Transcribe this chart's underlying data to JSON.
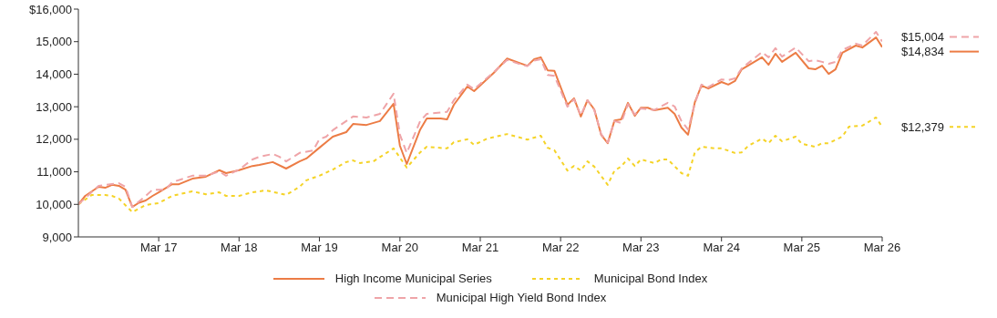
{
  "chart_data": {
    "type": "line",
    "xlim": [
      "2016-03",
      "2026-03"
    ],
    "ylim": [
      9000,
      16000
    ],
    "xticks": [
      {
        "value": "2017-03",
        "label": "Mar 17"
      },
      {
        "value": "2018-03",
        "label": "Mar 18"
      },
      {
        "value": "2019-03",
        "label": "Mar 19"
      },
      {
        "value": "2020-03",
        "label": "Mar 20"
      },
      {
        "value": "2021-03",
        "label": "Mar 21"
      },
      {
        "value": "2022-03",
        "label": "Mar 22"
      },
      {
        "value": "2023-03",
        "label": "Mar 23"
      },
      {
        "value": "2024-03",
        "label": "Mar 24"
      },
      {
        "value": "2025-03",
        "label": "Mar 25"
      },
      {
        "value": "2026-03",
        "label": "Mar 26"
      }
    ],
    "yticks": [
      {
        "value": 9000,
        "label": "9,000"
      },
      {
        "value": 10000,
        "label": "10,000"
      },
      {
        "value": 11000,
        "label": "11,000"
      },
      {
        "value": 12000,
        "label": "12,000"
      },
      {
        "value": 13000,
        "label": "13,000"
      },
      {
        "value": 14000,
        "label": "14,000"
      },
      {
        "value": 15000,
        "label": "15,000"
      },
      {
        "value": 16000,
        "label": "$16,000"
      }
    ],
    "grid": false,
    "legend": "bottom",
    "marker": "none",
    "series": [
      {
        "name": "High Income Municipal Series",
        "color": "#ec7c45",
        "line_style": "solid",
        "x": [
          "2016-03",
          "2016-04",
          "2016-06",
          "2016-07",
          "2016-08",
          "2016-09",
          "2016-10",
          "2016-11",
          "2016-12",
          "2017-01",
          "2017-02",
          "2017-03",
          "2017-05",
          "2017-06",
          "2017-08",
          "2017-10",
          "2017-12",
          "2018-01",
          "2018-03",
          "2018-05",
          "2018-06",
          "2018-08",
          "2018-10",
          "2018-12",
          "2019-01",
          "2019-03",
          "2019-04",
          "2019-05",
          "2019-07",
          "2019-08",
          "2019-10",
          "2019-12",
          "2020-02",
          "2020-03",
          "2020-04",
          "2020-06",
          "2020-07",
          "2020-09",
          "2020-10",
          "2020-11",
          "2021-01",
          "2021-02",
          "2021-05",
          "2021-07",
          "2021-09",
          "2021-10",
          "2021-11",
          "2021-12",
          "2022-01",
          "2022-02",
          "2022-04",
          "2022-05",
          "2022-06",
          "2022-07",
          "2022-08",
          "2022-09",
          "2022-10",
          "2022-11",
          "2022-12",
          "2023-01",
          "2023-02",
          "2023-03",
          "2023-04",
          "2023-05",
          "2023-07",
          "2023-08",
          "2023-09",
          "2023-10",
          "2023-11",
          "2023-12",
          "2024-01",
          "2024-03",
          "2024-04",
          "2024-05",
          "2024-06",
          "2024-09",
          "2024-10",
          "2024-11",
          "2024-12",
          "2025-02",
          "2025-04",
          "2025-05",
          "2025-06",
          "2025-07",
          "2025-08",
          "2025-09",
          "2025-11",
          "2025-12",
          "2026-02",
          "2026-03"
        ],
        "values": [
          10000,
          10260,
          10540,
          10510,
          10600,
          10570,
          10450,
          9920,
          10050,
          10120,
          10260,
          10370,
          10620,
          10620,
          10790,
          10850,
          11050,
          10960,
          11050,
          11180,
          11210,
          11300,
          11100,
          11320,
          11410,
          11740,
          11910,
          12080,
          12220,
          12470,
          12440,
          12560,
          13090,
          11800,
          11240,
          12300,
          12640,
          12640,
          12610,
          13060,
          13620,
          13480,
          14040,
          14480,
          14330,
          14260,
          14460,
          14520,
          14120,
          14100,
          13060,
          13260,
          12700,
          13200,
          12920,
          12140,
          11880,
          12580,
          12610,
          13120,
          12720,
          12970,
          12970,
          12890,
          12970,
          12780,
          12360,
          12140,
          13140,
          13650,
          13560,
          13760,
          13680,
          13790,
          14150,
          14520,
          14290,
          14630,
          14380,
          14660,
          14180,
          14150,
          14260,
          14010,
          14150,
          14660,
          14880,
          14820,
          15130,
          14834
        ]
      },
      {
        "name": "Municipal Bond Index",
        "color": "#f5d327",
        "line_style": "dotted",
        "x": [
          "2016-03",
          "2016-05",
          "2016-07",
          "2016-08",
          "2016-09",
          "2016-11",
          "2017-01",
          "2017-03",
          "2017-05",
          "2017-06",
          "2017-08",
          "2017-10",
          "2017-12",
          "2018-01",
          "2018-03",
          "2018-05",
          "2018-07",
          "2018-10",
          "2018-12",
          "2019-01",
          "2019-03",
          "2019-05",
          "2019-07",
          "2019-08",
          "2019-09",
          "2019-11",
          "2020-02",
          "2020-04",
          "2020-06",
          "2020-07",
          "2020-10",
          "2020-11",
          "2021-01",
          "2021-02",
          "2021-04",
          "2021-07",
          "2021-10",
          "2021-12",
          "2022-01",
          "2022-02",
          "2022-04",
          "2022-05",
          "2022-06",
          "2022-07",
          "2022-08",
          "2022-10",
          "2022-11",
          "2022-12",
          "2023-01",
          "2023-02",
          "2023-03",
          "2023-05",
          "2023-06",
          "2023-07",
          "2023-09",
          "2023-10",
          "2023-11",
          "2023-12",
          "2024-02",
          "2024-03",
          "2024-05",
          "2024-06",
          "2024-07",
          "2024-09",
          "2024-10",
          "2024-11",
          "2024-12",
          "2025-02",
          "2025-03",
          "2025-05",
          "2025-06",
          "2025-07",
          "2025-09",
          "2025-10",
          "2025-12",
          "2026-02",
          "2026-03"
        ],
        "values": [
          10000,
          10290,
          10290,
          10260,
          10180,
          9760,
          9980,
          10040,
          10260,
          10310,
          10400,
          10310,
          10370,
          10260,
          10260,
          10370,
          10430,
          10290,
          10540,
          10740,
          10880,
          11070,
          11300,
          11350,
          11270,
          11320,
          11720,
          11130,
          11600,
          11770,
          11720,
          11910,
          12000,
          11830,
          12020,
          12160,
          11990,
          12110,
          11740,
          11660,
          11040,
          11180,
          11040,
          11320,
          11160,
          10600,
          11040,
          11160,
          11410,
          11180,
          11380,
          11270,
          11380,
          11380,
          10960,
          10880,
          11600,
          11770,
          11720,
          11720,
          11580,
          11600,
          11800,
          12020,
          11880,
          12110,
          11940,
          12080,
          11860,
          11770,
          11880,
          11880,
          12080,
          12390,
          12420,
          12670,
          12379
        ]
      },
      {
        "name": "Municipal High Yield Bond Index",
        "color": "#efa4a8",
        "line_style": "dashed",
        "x": [
          "2016-03",
          "2016-06",
          "2016-09",
          "2016-10",
          "2016-11",
          "2017-01",
          "2017-02",
          "2017-04",
          "2017-05",
          "2017-08",
          "2017-10",
          "2017-12",
          "2018-01",
          "2018-03",
          "2018-05",
          "2018-06",
          "2018-08",
          "2018-09",
          "2018-10",
          "2018-12",
          "2019-02",
          "2019-03",
          "2019-04",
          "2019-05",
          "2019-08",
          "2019-10",
          "2019-12",
          "2020-02",
          "2020-03",
          "2020-04",
          "2020-06",
          "2020-07",
          "2020-10",
          "2020-11",
          "2021-01",
          "2021-02",
          "2021-05",
          "2021-07",
          "2021-09",
          "2021-10",
          "2021-11",
          "2021-12",
          "2022-01",
          "2022-02",
          "2022-04",
          "2022-05",
          "2022-06",
          "2022-07",
          "2022-08",
          "2022-09",
          "2022-10",
          "2022-11",
          "2022-12",
          "2023-01",
          "2023-02",
          "2023-03",
          "2023-04",
          "2023-05",
          "2023-07",
          "2023-08",
          "2023-09",
          "2023-10",
          "2023-11",
          "2023-12",
          "2024-01",
          "2024-03",
          "2024-04",
          "2024-05",
          "2024-06",
          "2024-09",
          "2024-10",
          "2024-11",
          "2024-12",
          "2025-02",
          "2025-04",
          "2025-05",
          "2025-06",
          "2025-07",
          "2025-08",
          "2025-09",
          "2025-11",
          "2025-12",
          "2026-02",
          "2026-03"
        ],
        "values": [
          10000,
          10570,
          10650,
          10540,
          9920,
          10260,
          10450,
          10450,
          10680,
          10880,
          10880,
          11010,
          10880,
          11070,
          11380,
          11460,
          11550,
          11460,
          11320,
          11580,
          11660,
          12000,
          12080,
          12280,
          12700,
          12670,
          12780,
          13400,
          12140,
          11580,
          12560,
          12780,
          12840,
          13200,
          13680,
          13540,
          14060,
          14440,
          14300,
          14250,
          14420,
          14460,
          13980,
          13950,
          13000,
          13230,
          12730,
          13200,
          12900,
          12160,
          11900,
          12560,
          12500,
          13080,
          12760,
          12950,
          12920,
          12900,
          13120,
          13010,
          12560,
          12300,
          13100,
          13680,
          13600,
          13840,
          13820,
          13870,
          14180,
          14680,
          14520,
          14800,
          14540,
          14820,
          14400,
          14430,
          14380,
          14320,
          14380,
          14740,
          14940,
          14880,
          15300,
          15004
        ]
      }
    ],
    "annotations": [
      {
        "text": "$15,004",
        "x": "2026-03",
        "y": 15004
      },
      {
        "text": "$14,834",
        "x": "2026-03",
        "y": 14834
      },
      {
        "text": "$12,379",
        "x": "2026-03",
        "y": 12379
      }
    ]
  }
}
